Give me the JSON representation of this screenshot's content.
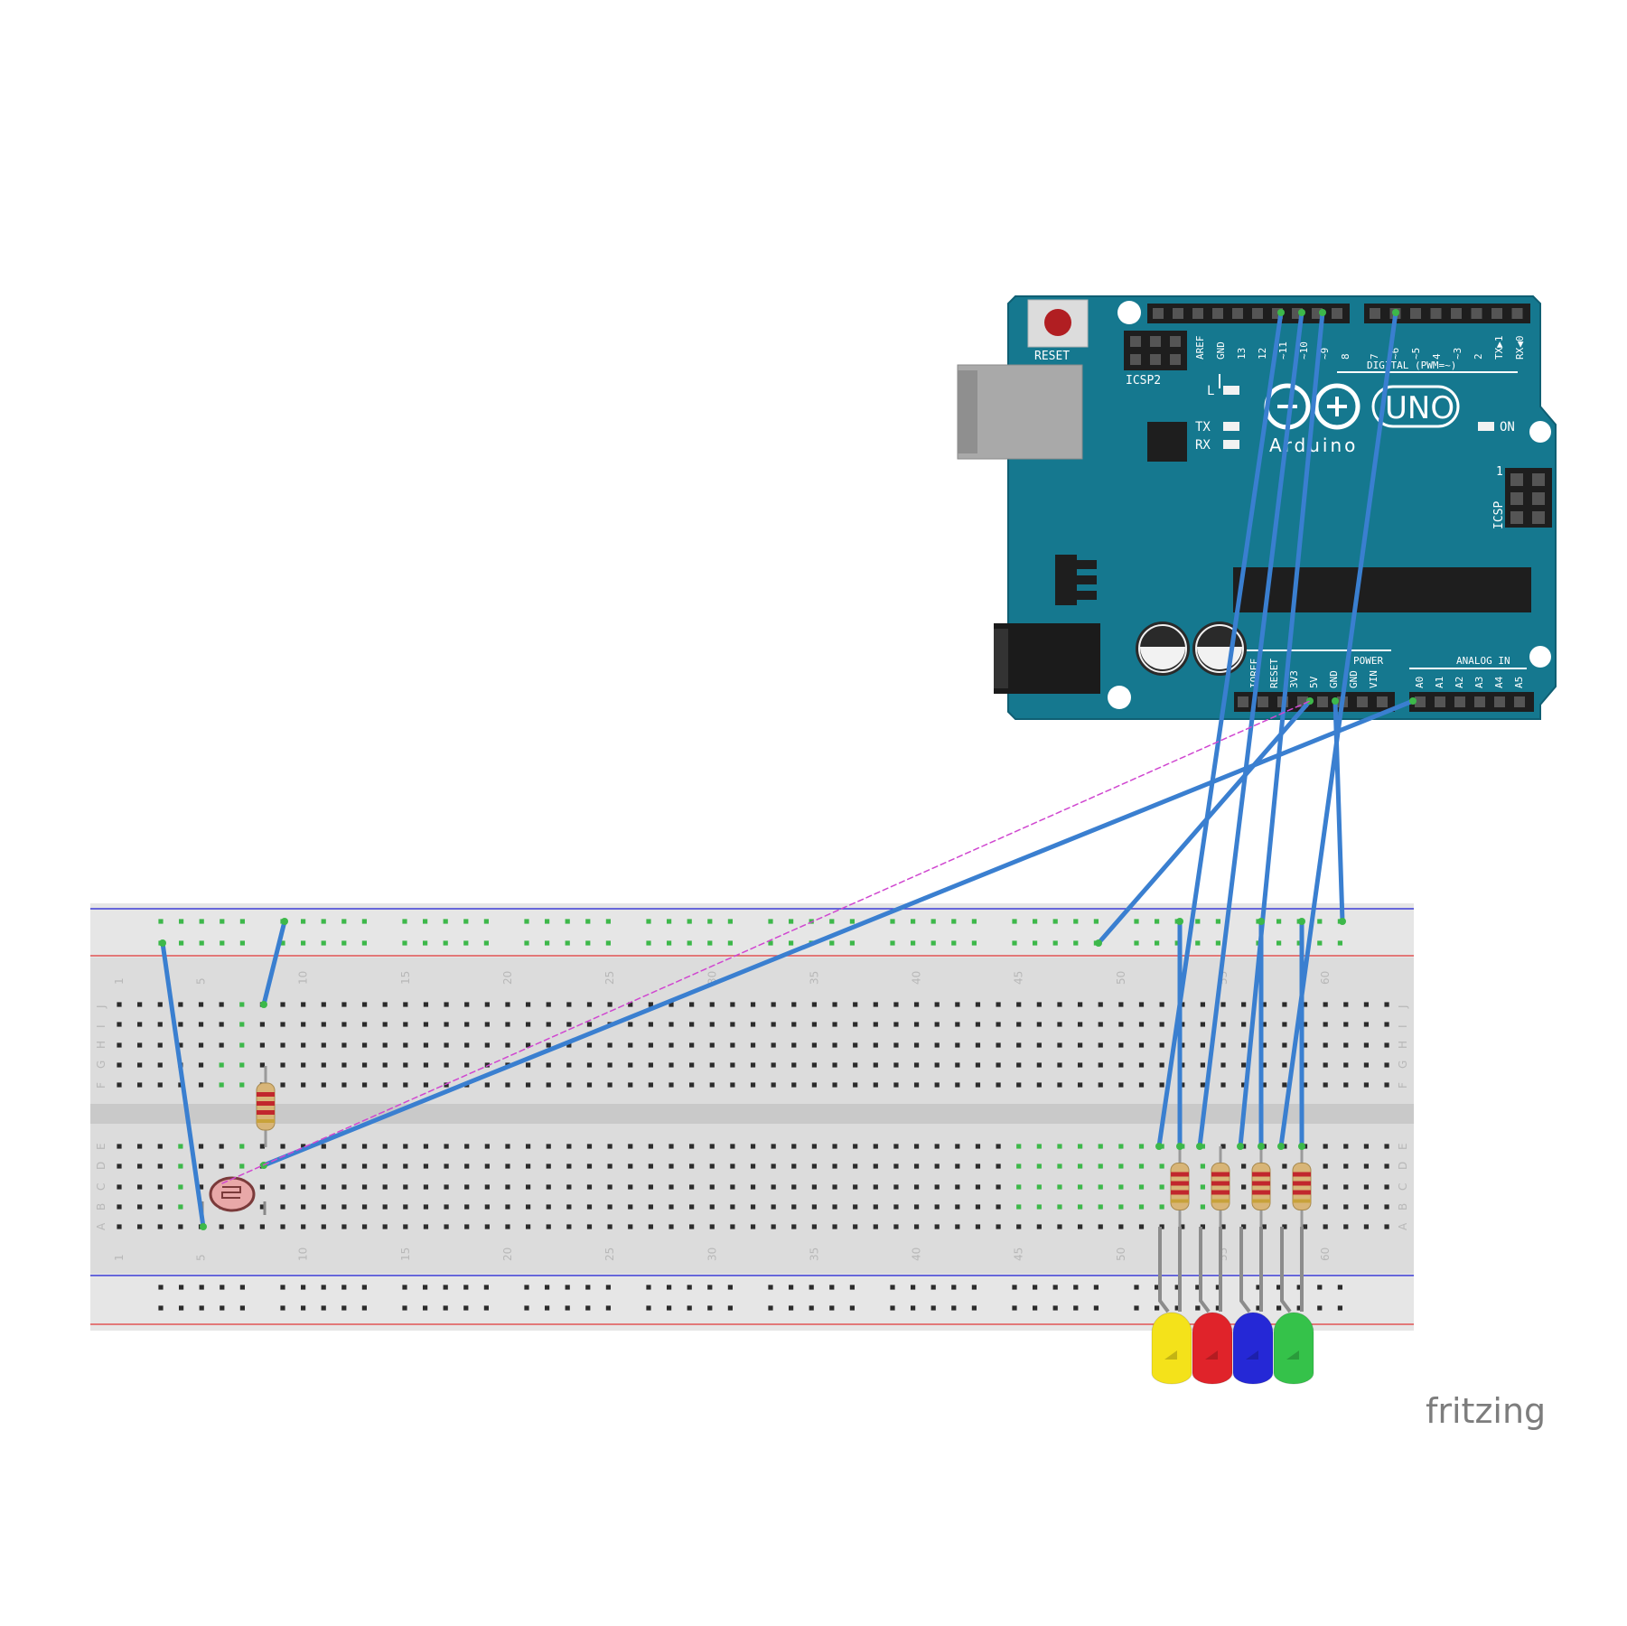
{
  "arduino": {
    "reset_label": "RESET",
    "icsp2_label": "ICSP2",
    "icsp_label": "ICSP",
    "digital_header_labels": [
      "AREF",
      "GND",
      "13",
      "12",
      "~11",
      "~10",
      "~9",
      "8"
    ],
    "digital_header_labels2": [
      "7",
      "~6",
      "~5",
      "4",
      "~3",
      "2",
      "TX▶1",
      "RX◀0"
    ],
    "digital_title": "DIGITAL (PWM=~)",
    "led_l": "L",
    "led_tx": "TX",
    "led_rx": "RX",
    "led_on": "ON",
    "brand_name": "Arduino",
    "model_name": "UNO",
    "power_title": "POWER",
    "analog_title": "ANALOG IN",
    "power_labels": [
      "IOREF",
      "RESET",
      "3V3",
      "5V",
      "GND",
      "GND",
      "VIN"
    ],
    "analog_labels": [
      "A0",
      "A1",
      "A2",
      "A3",
      "A4",
      "A5"
    ],
    "icsp_pin1": "1"
  },
  "breadboard": {
    "row_letters_top": [
      "J",
      "I",
      "H",
      "G",
      "F"
    ],
    "row_letters_bottom": [
      "E",
      "D",
      "C",
      "B",
      "A"
    ],
    "column_numbers": [
      "1",
      "5",
      "10",
      "15",
      "20",
      "25",
      "30",
      "35",
      "40",
      "45",
      "50",
      "55",
      "60"
    ]
  },
  "leds": [
    {
      "color_name": "yellow",
      "fill": "#f4e21a"
    },
    {
      "color_name": "red",
      "fill": "#e0232a"
    },
    {
      "color_name": "blue",
      "fill": "#2528d6"
    },
    {
      "color_name": "green",
      "fill": "#35c24a"
    }
  ],
  "colors": {
    "board": "#15788f",
    "wire": "#3a7fd0",
    "breadboard": "#dcdcdc"
  },
  "footer": {
    "brand": "fritzing"
  }
}
